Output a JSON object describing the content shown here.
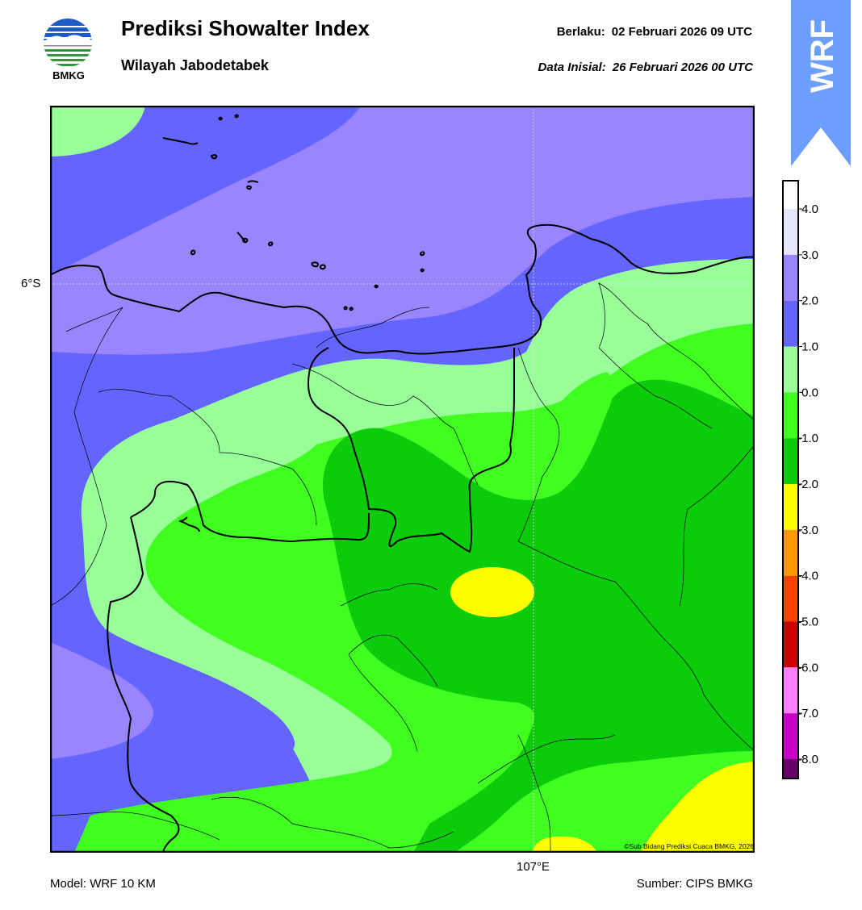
{
  "header": {
    "logo_text": "BMKG",
    "title": "Prediksi Showalter Index",
    "subtitle": "Wilayah Jabodetabek",
    "valid_label": "Berlaku:",
    "valid_time": "02 Februari 2026 09 UTC",
    "init_label": "Data Inisial:",
    "init_time": "26 Februari 2026 00 UTC",
    "badge": "WRF"
  },
  "map": {
    "lat_label": "6°S",
    "lon_label": "107°E",
    "copyright": "©Sub Bidang Prediksi Cuaca BMKG, 2026"
  },
  "colorbar": {
    "labels": [
      "4.0",
      "3.0",
      "2.0",
      "1.0",
      "0.0",
      "-1.0",
      "-2.0",
      "-3.0",
      "-4.0",
      "-5.0",
      "-6.0",
      "-7.0",
      "-8.0"
    ],
    "colors": [
      "#ffffff",
      "#e6e6fa",
      "#9b84ff",
      "#6464ff",
      "#99ff99",
      "#40ff20",
      "#0bcc0b",
      "#ffff00",
      "#ff9a00",
      "#ff4000",
      "#cc0000",
      "#ff80ff",
      "#c800c8",
      "#660066"
    ]
  },
  "footer": {
    "model": "Model: WRF 10 KM",
    "source": "Sumber: CIPS BMKG"
  }
}
